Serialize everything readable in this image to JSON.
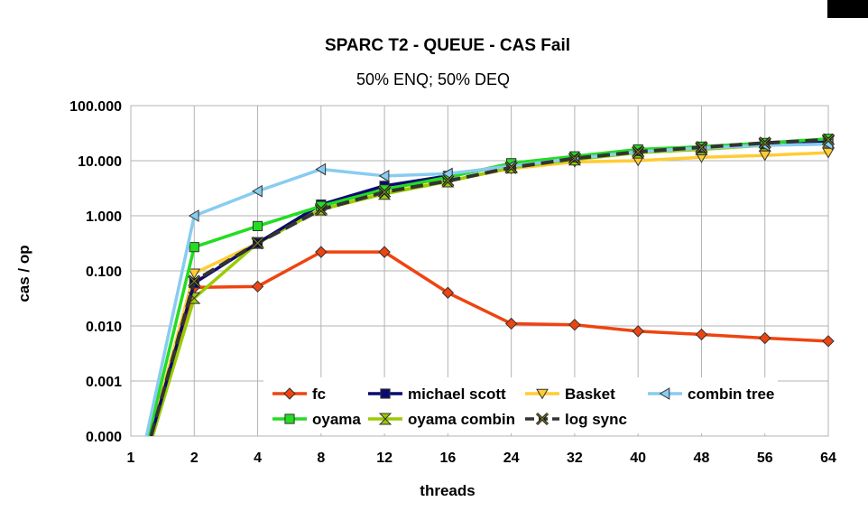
{
  "chart_data": {
    "type": "line",
    "title": "SPARC T2 - QUEUE - CAS Fail",
    "subtitle": "50% ENQ; 50% DEQ",
    "xlabel": "threads",
    "ylabel": "cas / op",
    "y_scale": "log",
    "grid": true,
    "legend_placement": "bottom-center",
    "categories": [
      "1",
      "2",
      "4",
      "8",
      "12",
      "16",
      "24",
      "32",
      "40",
      "48",
      "56",
      "64"
    ],
    "y_ticks": [
      "0.000",
      "0.001",
      "0.010",
      "0.100",
      "1.000",
      "10.000",
      "100.000"
    ],
    "series": [
      {
        "name": "fc",
        "color": "#ee4411",
        "marker": "diamond",
        "values": [
          0,
          0.05,
          0.052,
          0.22,
          0.22,
          0.04,
          0.011,
          0.0105,
          0.008,
          0.007,
          0.006,
          0.0053
        ]
      },
      {
        "name": "michael scott",
        "color": "#0a0a6e",
        "marker": "square",
        "values": [
          0,
          0.06,
          0.32,
          1.6,
          3.5,
          5.3,
          8.5,
          11.5,
          15,
          17,
          20,
          23
        ]
      },
      {
        "name": "Basket",
        "color": "#ffcc33",
        "marker": "triangle-down",
        "values": [
          0,
          0.09,
          0.32,
          1.3,
          2.6,
          4.3,
          7.2,
          9.5,
          10,
          11.5,
          12.5,
          14
        ]
      },
      {
        "name": "combin tree",
        "color": "#88ccf0",
        "marker": "triangle-left",
        "values": [
          0,
          1.0,
          2.8,
          7.0,
          5.3,
          5.8,
          8.0,
          11.0,
          14.5,
          17,
          19,
          20
        ]
      },
      {
        "name": "oyama",
        "color": "#22dd22",
        "marker": "square",
        "values": [
          0,
          0.27,
          0.65,
          1.5,
          3.0,
          5.0,
          9.0,
          12.0,
          16,
          18,
          21,
          25
        ]
      },
      {
        "name": "oyama combin",
        "color": "#99cc00",
        "marker": "hourglass",
        "values": [
          0,
          0.032,
          0.32,
          1.3,
          2.5,
          4.2,
          7.5,
          10.5,
          14,
          16,
          19,
          22
        ]
      },
      {
        "name": "log sync",
        "color": "#333333",
        "marker": "x",
        "values": [
          0,
          0.065,
          0.32,
          1.3,
          2.7,
          4.3,
          7.5,
          11.0,
          14.5,
          17.5,
          21,
          24
        ]
      }
    ]
  }
}
